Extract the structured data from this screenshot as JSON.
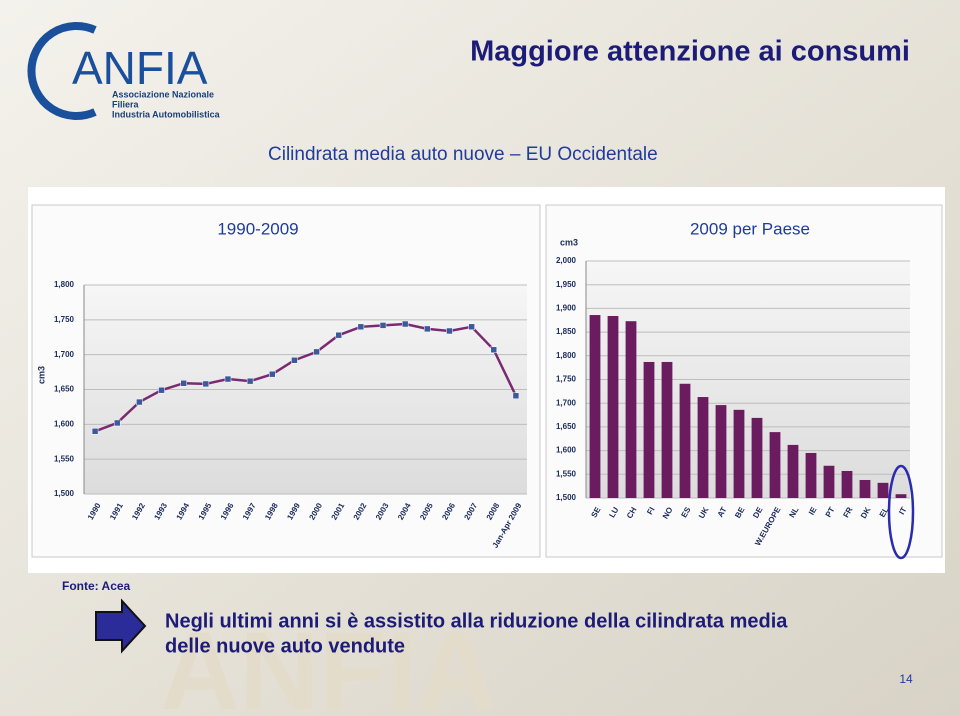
{
  "slide": {
    "title": "Maggiore attenzione ai consumi",
    "subtitle": "Cilindrata media auto nuove – EU Occidentale",
    "source": "Fonte: Acea",
    "conclusion": [
      "Negli ultimi anni si è assistito alla riduzione della cilindrata media",
      "delle nuove auto vendute"
    ],
    "page_number": "14"
  },
  "logo": {
    "name": "ANFIA",
    "lines": [
      "Associazione Nazionale",
      "Filiera",
      "Industria Automobilistica"
    ]
  },
  "chart_data": [
    {
      "type": "line",
      "title": "1990-2009",
      "y_label": "cm3",
      "color": "#7a2a70",
      "grid": true,
      "categories": [
        "1990",
        "1991",
        "1992",
        "1993",
        "1994",
        "1995",
        "1996",
        "1997",
        "1998",
        "1999",
        "2000",
        "2001",
        "2002",
        "2003",
        "2004",
        "2005",
        "2006",
        "2007",
        "2008",
        "Jan-Apr 2009"
      ],
      "values": [
        1590,
        1602,
        1632,
        1649,
        1659,
        1658,
        1665,
        1662,
        1672,
        1692,
        1704,
        1728,
        1740,
        1742,
        1744,
        1737,
        1734,
        1740,
        1707,
        1641
      ],
      "ylim": [
        1500,
        1800
      ],
      "yticks": [
        {
          "value": 1500,
          "label": "1,500"
        },
        {
          "value": 1550,
          "label": "1,550"
        },
        {
          "value": 1600,
          "label": "1,600"
        },
        {
          "value": 1650,
          "label": "1,650"
        },
        {
          "value": 1700,
          "label": "1,700"
        },
        {
          "value": 1750,
          "label": "1,750"
        },
        {
          "value": 1800,
          "label": "1,800"
        }
      ]
    },
    {
      "type": "bar",
      "title": "2009 per Paese",
      "y_label": "cm3",
      "color": "#6a1c5e",
      "grid": true,
      "categories": [
        "SE",
        "LU",
        "CH",
        "FI",
        "NO",
        "ES",
        "UK",
        "AT",
        "BE",
        "DE",
        "W.EUROPE",
        "NL",
        "IE",
        "PT",
        "FR",
        "DK",
        "EL",
        "IT"
      ],
      "values": [
        1886,
        1884,
        1873,
        1787,
        1787,
        1741,
        1713,
        1696,
        1686,
        1669,
        1639,
        1612,
        1595,
        1568,
        1557,
        1538,
        1532,
        1508
      ],
      "ylim": [
        1500,
        2000
      ],
      "yticks": [
        {
          "value": 1500,
          "label": "1,500"
        },
        {
          "value": 1550,
          "label": "1,550"
        },
        {
          "value": 1600,
          "label": "1,600"
        },
        {
          "value": 1650,
          "label": "1,650"
        },
        {
          "value": 1700,
          "label": "1,700"
        },
        {
          "value": 1750,
          "label": "1,750"
        },
        {
          "value": 1800,
          "label": "1,800"
        },
        {
          "value": 1850,
          "label": "1,850"
        },
        {
          "value": 1900,
          "label": "1,900"
        },
        {
          "value": 1950,
          "label": "1,950"
        },
        {
          "value": 2000,
          "label": "2,000"
        }
      ]
    }
  ]
}
